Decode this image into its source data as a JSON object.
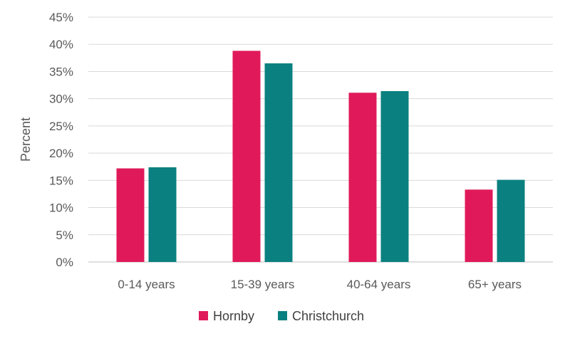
{
  "chart_data": {
    "type": "bar",
    "title": "",
    "xlabel": "",
    "ylabel": "Percent",
    "ylim": [
      0,
      45
    ],
    "y_tick_labels": [
      "0%",
      "5%",
      "10%",
      "15%",
      "20%",
      "25%",
      "30%",
      "35%",
      "40%",
      "45%"
    ],
    "categories": [
      "0-14 years",
      "15-39 years",
      "40-64 years",
      "65+ years"
    ],
    "series": [
      {
        "name": "Hornby",
        "color": "#e01a5a",
        "values": [
          17.2,
          38.8,
          31.1,
          13.3
        ]
      },
      {
        "name": "Christchurch",
        "color": "#0b8080",
        "values": [
          17.4,
          36.5,
          31.4,
          15.1
        ]
      }
    ],
    "grid": true,
    "legend_position": "bottom"
  }
}
